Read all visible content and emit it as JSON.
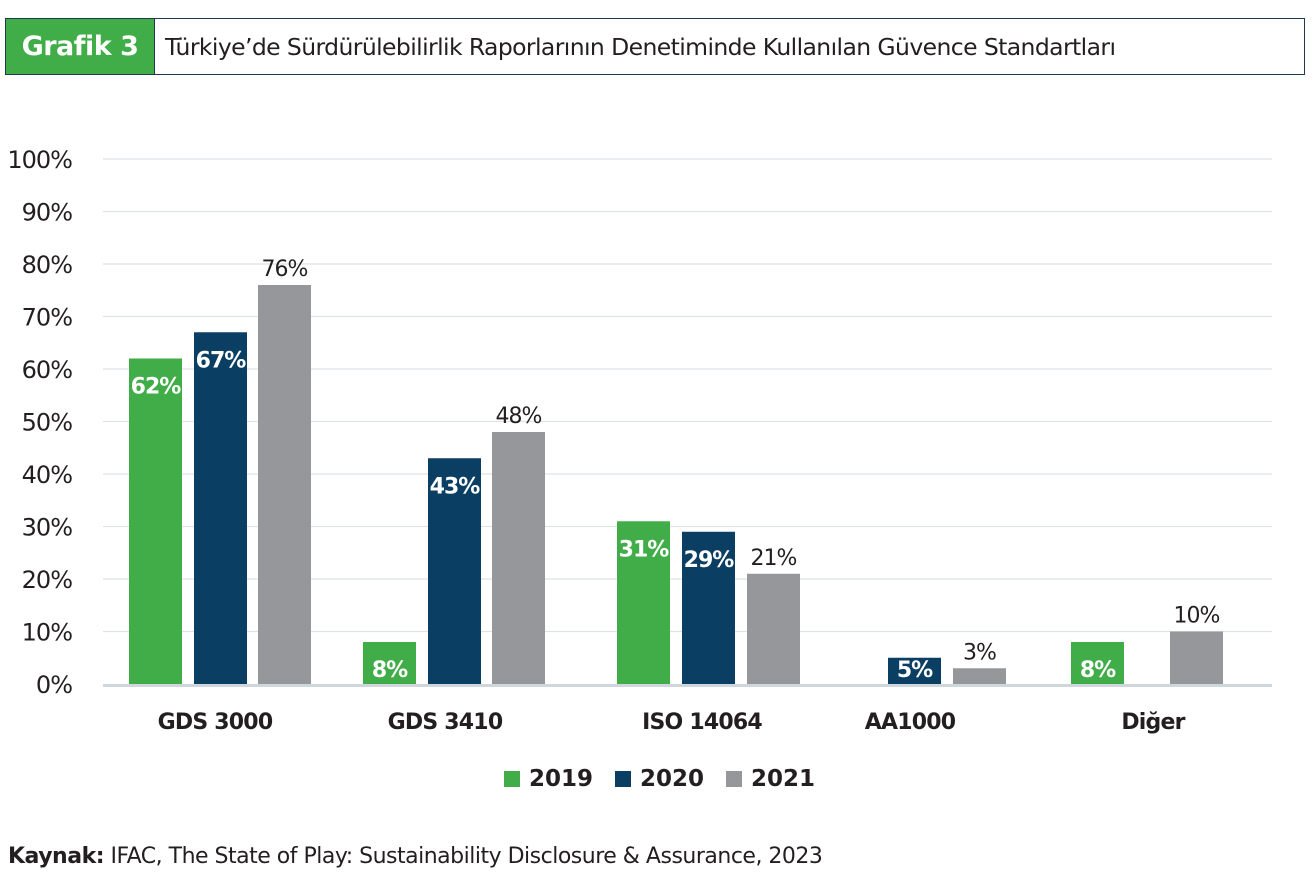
{
  "header": {
    "tag": "Grafik 3",
    "title": "Türkiye’de Sürdürülebilirlik Raporlarının Denetiminde Kullanılan Güvence Standartları"
  },
  "colors": {
    "2019": "#41ad49",
    "2020": "#0b3e63",
    "2021": "#96979b",
    "grid": "#dfe3e6",
    "axis": "#cfd6dc",
    "tag_bg": "#41ad49"
  },
  "chart_data": {
    "type": "bar",
    "title": "Türkiye’de Sürdürülebilirlik Raporlarının Denetiminde Kullanılan Güvence Standartları",
    "xlabel": "",
    "ylabel": "",
    "ylim": [
      0,
      100
    ],
    "yticks": [
      "0%",
      "10%",
      "20%",
      "30%",
      "40%",
      "50%",
      "60%",
      "70%",
      "80%",
      "90%",
      "100%"
    ],
    "grid": true,
    "legend_position": "bottom-center",
    "categories": [
      "GDS 3000",
      "GDS 3410",
      "ISO 14064",
      "AA1000",
      "Diğer"
    ],
    "series": [
      {
        "name": "2019",
        "values": [
          62,
          8,
          31,
          null,
          8
        ],
        "labels": [
          "62%",
          "8%",
          "31%",
          "",
          "8%"
        ],
        "label_inside": true
      },
      {
        "name": "2020",
        "values": [
          67,
          43,
          29,
          5,
          null
        ],
        "labels": [
          "67%",
          "43%",
          "29%",
          "5%",
          ""
        ],
        "label_inside": true
      },
      {
        "name": "2021",
        "values": [
          76,
          48,
          21,
          3,
          10
        ],
        "labels": [
          "76%",
          "48%",
          "21%",
          "3%",
          "10%"
        ],
        "label_inside": false
      }
    ]
  },
  "legend": [
    {
      "name": "2019"
    },
    {
      "name": "2020"
    },
    {
      "name": "2021"
    }
  ],
  "source": {
    "label": "Kaynak:",
    "text": " IFAC, The State of Play: Sustainability Disclosure & Assurance,  2023"
  }
}
